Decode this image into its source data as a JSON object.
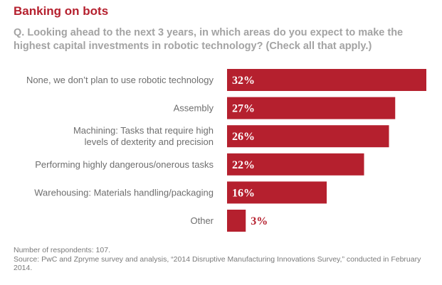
{
  "title": "Banking on bots",
  "question": "Q. Looking ahead to the next 3 years, in which areas do you expect to make the highest capital investments in robotic technology? (Check all that apply.)",
  "colors": {
    "bar": "#b5202e",
    "title": "#b5202e",
    "question": "#a3a3a3",
    "label": "#6e6e6e",
    "footer": "#7a7a7a"
  },
  "chart_data": {
    "type": "bar",
    "orientation": "horizontal",
    "categories": [
      [
        "None, we don’t plan to use robotic technology"
      ],
      [
        "Assembly"
      ],
      [
        "Machining: Tasks that require high",
        "levels of dexterity and precision"
      ],
      [
        "Performing highly dangerous/onerous tasks"
      ],
      [
        "Warehousing: Materials handling/packaging"
      ],
      [
        "Other"
      ]
    ],
    "values": [
      32,
      27,
      26,
      22,
      16,
      3
    ],
    "value_labels": [
      "32%",
      "27%",
      "26%",
      "22%",
      "16%",
      "3%"
    ],
    "unit": "%",
    "xlim": [
      0,
      32
    ],
    "grid": false,
    "legend": "none"
  },
  "footer": {
    "respondents": "Number of respondents: 107.",
    "source": "Source: PwC and Zpryme survey and analysis, “2014 Disruptive Manufacturing Innovations Survey,” conducted in February 2014."
  }
}
